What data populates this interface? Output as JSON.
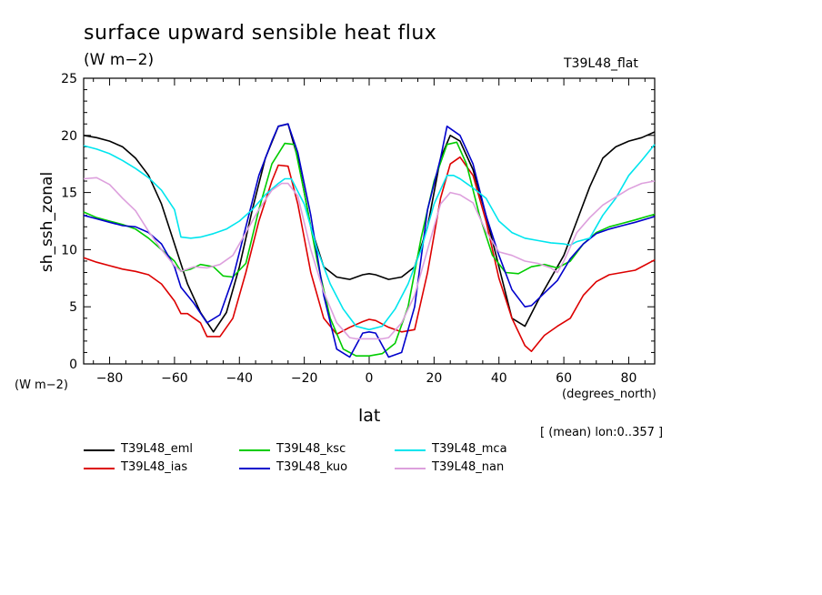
{
  "chart_data": {
    "type": "line",
    "title": "surface upward sensible heat flux",
    "subtitle": "(W m−2)",
    "tag": "T39L48_flat",
    "ylabel": "sh_ssh_zonal",
    "yunit": "(W m−2)",
    "xlabel": "lat",
    "xunit": "(degrees_north)",
    "meta": "[ (mean) lon:0..357 ]",
    "xlim": [
      -88,
      88
    ],
    "ylim": [
      0,
      25
    ],
    "xticks": [
      -80,
      -60,
      -40,
      -20,
      0,
      20,
      40,
      60,
      80
    ],
    "yticks": [
      0,
      5,
      10,
      15,
      20,
      25
    ],
    "legend_position": "bottom",
    "series": [
      {
        "name": "T39L48_eml",
        "color": "#000000",
        "x": [
          -88,
          -84,
          -80,
          -76,
          -72,
          -68,
          -64,
          -60,
          -56,
          -52,
          -48,
          -44,
          -40,
          -36,
          -32,
          -28,
          -25,
          -22,
          -18,
          -14,
          -10,
          -6,
          -2,
          0,
          2,
          6,
          10,
          14,
          18,
          22,
          25,
          28,
          32,
          36,
          40,
          44,
          48,
          52,
          56,
          60,
          64,
          68,
          72,
          76,
          80,
          84,
          88
        ],
        "y": [
          20,
          19.8,
          19.5,
          19,
          18,
          16.5,
          14,
          10.5,
          7,
          4.5,
          2.8,
          4.5,
          8.5,
          13.5,
          18,
          20.8,
          21,
          18,
          12,
          8.5,
          7.6,
          7.4,
          7.8,
          7.9,
          7.8,
          7.4,
          7.6,
          8.5,
          12,
          18,
          20,
          19.5,
          17,
          13,
          8.5,
          4,
          3.3,
          5.5,
          7.5,
          9.5,
          12.5,
          15.5,
          18,
          19,
          19.5,
          19.8,
          20.3
        ]
      },
      {
        "name": "T39L48_ias",
        "color": "#dd0000",
        "x": [
          -88,
          -84,
          -80,
          -76,
          -72,
          -68,
          -64,
          -60,
          -58,
          -56,
          -52,
          -50,
          -46,
          -42,
          -38,
          -34,
          -30,
          -28,
          -25,
          -22,
          -18,
          -14,
          -10,
          -6,
          -2,
          0,
          2,
          6,
          10,
          14,
          18,
          22,
          25,
          28,
          32,
          36,
          40,
          44,
          48,
          50,
          54,
          58,
          62,
          66,
          70,
          74,
          78,
          82,
          88
        ],
        "y": [
          9.3,
          8.9,
          8.6,
          8.3,
          8.1,
          7.8,
          7,
          5.5,
          4.4,
          4.4,
          3.6,
          2.4,
          2.4,
          4,
          8,
          12.5,
          16,
          17.4,
          17.3,
          14,
          8,
          4,
          2.6,
          3.2,
          3.7,
          3.9,
          3.8,
          3.2,
          2.8,
          3,
          8,
          14.5,
          17.5,
          18.1,
          16.5,
          12.5,
          7.5,
          4,
          1.6,
          1.1,
          2.5,
          3.3,
          4,
          6,
          7.2,
          7.8,
          8,
          8.2,
          9.1
        ]
      },
      {
        "name": "T39L48_ksc",
        "color": "#00cc00",
        "x": [
          -88,
          -84,
          -80,
          -76,
          -72,
          -68,
          -64,
          -60,
          -58,
          -55,
          -52,
          -48,
          -45,
          -42,
          -38,
          -34,
          -30,
          -26,
          -23,
          -20,
          -16,
          -12,
          -8,
          -4,
          0,
          4,
          8,
          12,
          16,
          20,
          24,
          27,
          30,
          34,
          38,
          42,
          46,
          50,
          54,
          58,
          62,
          66,
          70,
          74,
          78,
          82,
          88
        ],
        "y": [
          13.3,
          12.8,
          12.5,
          12.2,
          11.8,
          11,
          10,
          9,
          8.1,
          8.3,
          8.7,
          8.5,
          7.7,
          7.6,
          8.8,
          13.5,
          17.5,
          19.3,
          19.2,
          15,
          9,
          4,
          1.3,
          0.7,
          0.7,
          0.9,
          1.8,
          5,
          11,
          16,
          19.2,
          19.4,
          17.5,
          13,
          9.5,
          8,
          7.9,
          8.5,
          8.7,
          8.4,
          9,
          10.5,
          11.5,
          12,
          12.3,
          12.6,
          13.1
        ]
      },
      {
        "name": "T39L48_kuo",
        "color": "#0000cc",
        "x": [
          -88,
          -84,
          -80,
          -76,
          -72,
          -68,
          -64,
          -60,
          -58,
          -54,
          -50,
          -46,
          -42,
          -38,
          -34,
          -30,
          -28,
          -25,
          -22,
          -18,
          -14,
          -10,
          -6,
          -2,
          0,
          2,
          6,
          10,
          14,
          18,
          22,
          24,
          28,
          32,
          36,
          40,
          44,
          48,
          50,
          54,
          58,
          62,
          66,
          70,
          74,
          78,
          82,
          88
        ],
        "y": [
          13,
          12.7,
          12.4,
          12.1,
          12,
          11.5,
          10.5,
          8.5,
          6.7,
          5.3,
          3.6,
          4.3,
          7.5,
          12,
          16.5,
          19.5,
          20.8,
          21,
          18.5,
          13,
          6,
          1.3,
          0.6,
          2.7,
          2.8,
          2.7,
          0.6,
          1,
          5,
          13.5,
          18,
          20.8,
          20,
          17.5,
          13,
          9.5,
          6.5,
          5,
          5.1,
          6.2,
          7.3,
          9.2,
          10.5,
          11.4,
          11.8,
          12.1,
          12.4,
          12.9
        ]
      },
      {
        "name": "T39L48_mca",
        "color": "#00e5ee",
        "x": [
          -88,
          -84,
          -80,
          -76,
          -72,
          -68,
          -64,
          -60,
          -58,
          -55,
          -52,
          -48,
          -44,
          -40,
          -36,
          -32,
          -28,
          -26,
          -24,
          -20,
          -16,
          -12,
          -8,
          -4,
          0,
          4,
          8,
          12,
          16,
          20,
          24,
          26,
          28,
          32,
          36,
          40,
          44,
          48,
          52,
          56,
          60,
          62,
          64,
          68,
          72,
          76,
          80,
          84,
          88
        ],
        "y": [
          19.1,
          18.8,
          18.4,
          17.8,
          17.1,
          16.3,
          15.2,
          13.5,
          11.1,
          11,
          11.1,
          11.4,
          11.8,
          12.5,
          13.5,
          14.8,
          15.8,
          16.2,
          16.2,
          14,
          10,
          7,
          4.8,
          3.3,
          3,
          3.3,
          4.8,
          7,
          10,
          14,
          16.5,
          16.5,
          16.2,
          15.4,
          14.5,
          12.5,
          11.5,
          11,
          10.8,
          10.6,
          10.5,
          10.4,
          10.7,
          11,
          13,
          14.5,
          16.5,
          17.8,
          19.2
        ]
      },
      {
        "name": "T39L48_nan",
        "color": "#dda0dd",
        "x": [
          -88,
          -84,
          -80,
          -76,
          -72,
          -68,
          -64,
          -60,
          -58,
          -54,
          -50,
          -46,
          -42,
          -38,
          -34,
          -30,
          -27,
          -25,
          -22,
          -18,
          -14,
          -10,
          -6,
          -4,
          -2,
          0,
          2,
          4,
          6,
          10,
          14,
          18,
          22,
          25,
          28,
          32,
          36,
          40,
          44,
          48,
          52,
          56,
          58,
          60,
          64,
          68,
          72,
          76,
          80,
          84,
          88
        ],
        "y": [
          16.2,
          16.3,
          15.7,
          14.5,
          13.4,
          11.6,
          10,
          8.6,
          8.1,
          8.5,
          8.4,
          8.7,
          9.5,
          11.5,
          13.5,
          15.2,
          15.8,
          15.8,
          14.7,
          10,
          6.3,
          3.6,
          2.3,
          2.2,
          2.2,
          2.2,
          2.2,
          2.2,
          2.3,
          3.6,
          6,
          10,
          14,
          15,
          14.8,
          14.1,
          11.6,
          9.8,
          9.5,
          9,
          8.8,
          8.4,
          8,
          9,
          11.5,
          12.8,
          13.9,
          14.6,
          15.3,
          15.8,
          16
        ]
      }
    ]
  }
}
